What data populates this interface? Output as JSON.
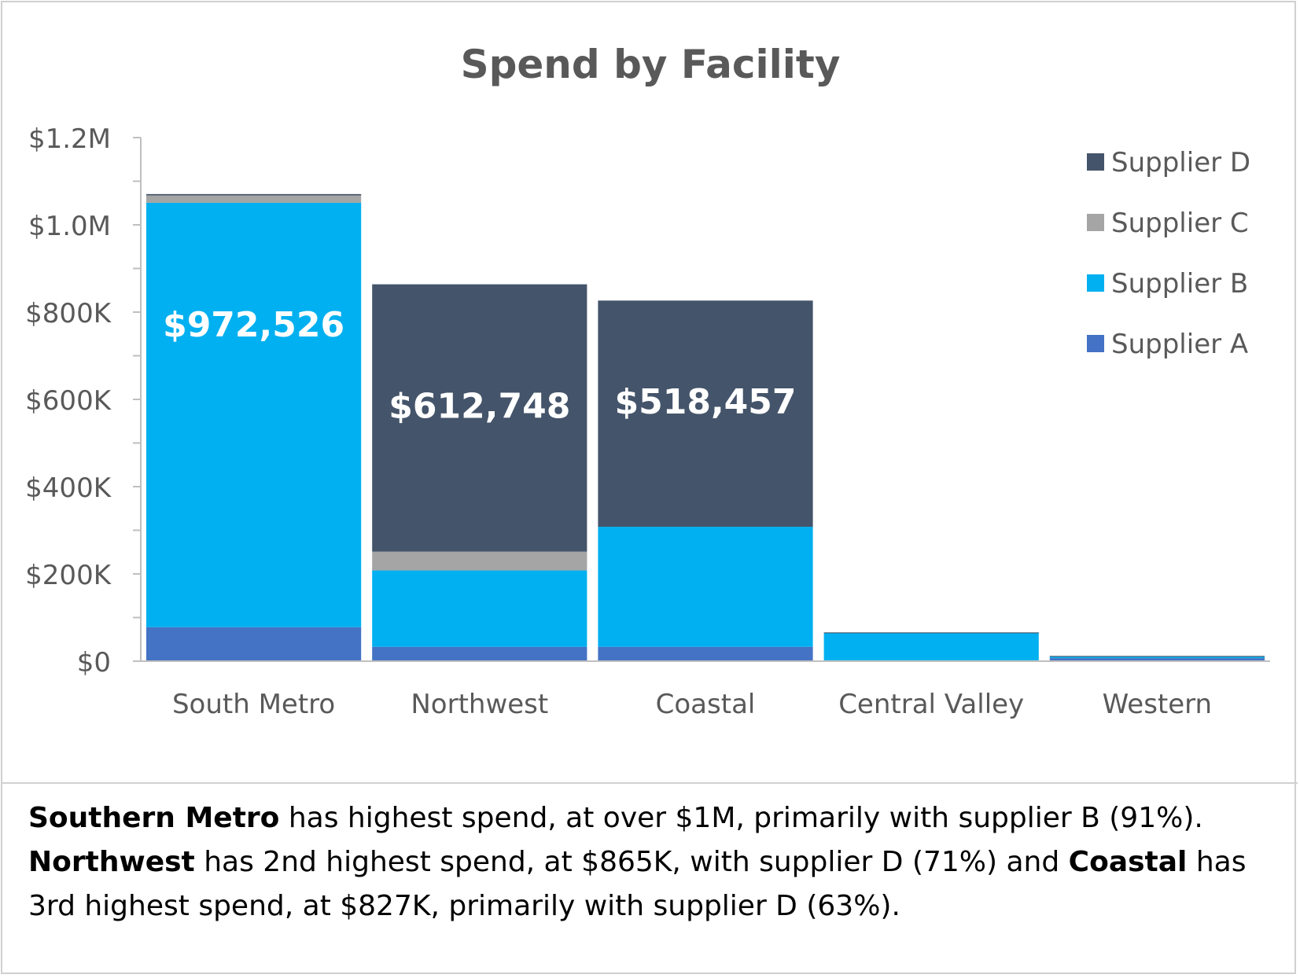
{
  "chart_data": {
    "type": "bar",
    "stacked": true,
    "title": "Spend by Facility",
    "xlabel": "",
    "ylabel": "",
    "ylim": [
      0,
      1200000
    ],
    "yticks": [
      0,
      200000,
      400000,
      600000,
      800000,
      1000000,
      1200000
    ],
    "ytick_labels": [
      "$0",
      "$200K",
      "$400K",
      "$600K",
      "$800K",
      "$1.0M",
      "$1.2M"
    ],
    "categories": [
      "South Metro",
      "Northwest",
      "Coastal",
      "Central Valley",
      "Western"
    ],
    "series": [
      {
        "name": "Supplier A",
        "color": "#4472C4",
        "values": [
          78000,
          33000,
          33000,
          2000,
          7000
        ]
      },
      {
        "name": "Supplier B",
        "color": "#00B0F0",
        "values": [
          972526,
          175000,
          275000,
          62000,
          3000
        ]
      },
      {
        "name": "Supplier C",
        "color": "#A5A5A5",
        "values": [
          17000,
          43000,
          0,
          0,
          0
        ]
      },
      {
        "name": "Supplier D",
        "color": "#44546A",
        "values": [
          3000,
          612748,
          518457,
          2000,
          2000
        ]
      }
    ],
    "data_labels": [
      {
        "category": "South Metro",
        "series": "Supplier B",
        "text": "$972,526"
      },
      {
        "category": "Northwest",
        "series": "Supplier D",
        "text": "$612,748"
      },
      {
        "category": "Coastal",
        "series": "Supplier D",
        "text": "$518,457"
      }
    ],
    "legend_position": "top-right",
    "legend_order": [
      "Supplier D",
      "Supplier C",
      "Supplier B",
      "Supplier A"
    ],
    "grid": false
  },
  "summary": {
    "line1": {
      "bold": "Southern Metro",
      "text": " has highest spend, at over $1M, primarily with supplier B (91%)."
    },
    "line2": {
      "bold": "Northwest",
      "text": " has 2nd highest spend, at $865K, with supplier D (71%) and ",
      "bold2": "Coastal",
      "text2": " has"
    },
    "line3": {
      "text": "3rd highest spend, at $827K, primarily with supplier D (63%)."
    }
  }
}
